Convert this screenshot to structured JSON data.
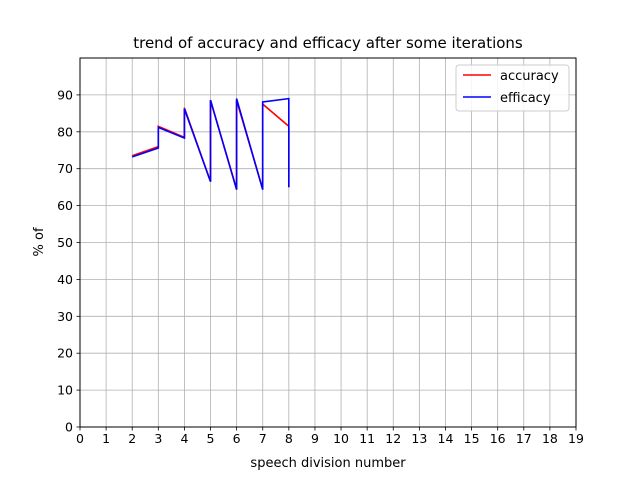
{
  "chart_data": {
    "type": "line",
    "title": "trend of accuracy and efficacy after some iterations",
    "xlabel": "speech division number",
    "ylabel": "% of",
    "xlim": [
      0,
      19
    ],
    "ylim": [
      0,
      100
    ],
    "xticks": [
      0,
      1,
      2,
      3,
      4,
      5,
      6,
      7,
      8,
      9,
      10,
      11,
      12,
      13,
      14,
      15,
      16,
      17,
      18,
      19
    ],
    "yticks": [
      0,
      10,
      20,
      30,
      40,
      50,
      60,
      70,
      80,
      90
    ],
    "grid": true,
    "legend_position": "top-right",
    "series": [
      {
        "name": "accuracy",
        "color": "#ff0000",
        "x": [
          2,
          3,
          3,
          4,
          4,
          5,
          5,
          6,
          6,
          7,
          7,
          8,
          8
        ],
        "y": [
          73.5,
          76,
          81.5,
          78.5,
          86.5,
          66.5,
          88.5,
          64.5,
          88.5,
          64.5,
          87.5,
          81.5,
          65
        ]
      },
      {
        "name": "efficacy",
        "color": "#0000ff",
        "x": [
          2,
          3,
          3,
          4,
          4,
          5,
          5,
          6,
          6,
          7,
          7,
          8,
          8
        ],
        "y": [
          73.2,
          75.6,
          81.2,
          78.3,
          86.2,
          66.5,
          88.6,
          64.3,
          89,
          64.3,
          88.1,
          89,
          65
        ]
      }
    ]
  }
}
